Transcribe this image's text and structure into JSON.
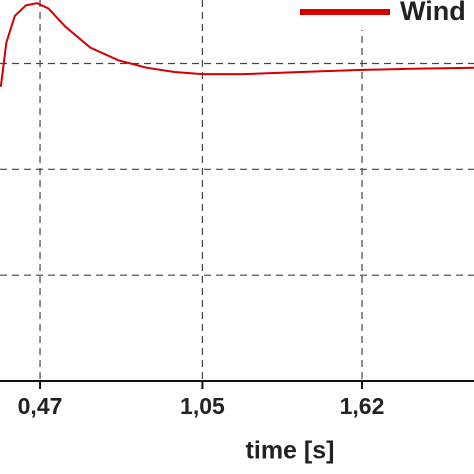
{
  "chart_data": {
    "type": "line",
    "x_label": "time [s]",
    "x": [
      0.33,
      0.35,
      0.38,
      0.42,
      0.46,
      0.5,
      0.56,
      0.65,
      0.75,
      0.85,
      0.95,
      1.05,
      1.2,
      1.4,
      1.62,
      1.8,
      2.02
    ],
    "series": [
      {
        "name": "Wind",
        "color": "#d40000",
        "values": [
          2.78,
          3.2,
          3.45,
          3.55,
          3.57,
          3.52,
          3.35,
          3.15,
          3.03,
          2.96,
          2.92,
          2.9,
          2.9,
          2.92,
          2.94,
          2.95,
          2.96
        ]
      }
    ],
    "xlim": [
      0.327,
      2.02
    ],
    "xticks": [
      {
        "value": 0.47,
        "label": "0,47"
      },
      {
        "value": 1.05,
        "label": "1,05"
      },
      {
        "value": 1.62,
        "label": "1,62"
      }
    ],
    "ylim": [
      0,
      3.6
    ],
    "yticks": [
      1,
      2,
      3
    ],
    "grid": true
  }
}
